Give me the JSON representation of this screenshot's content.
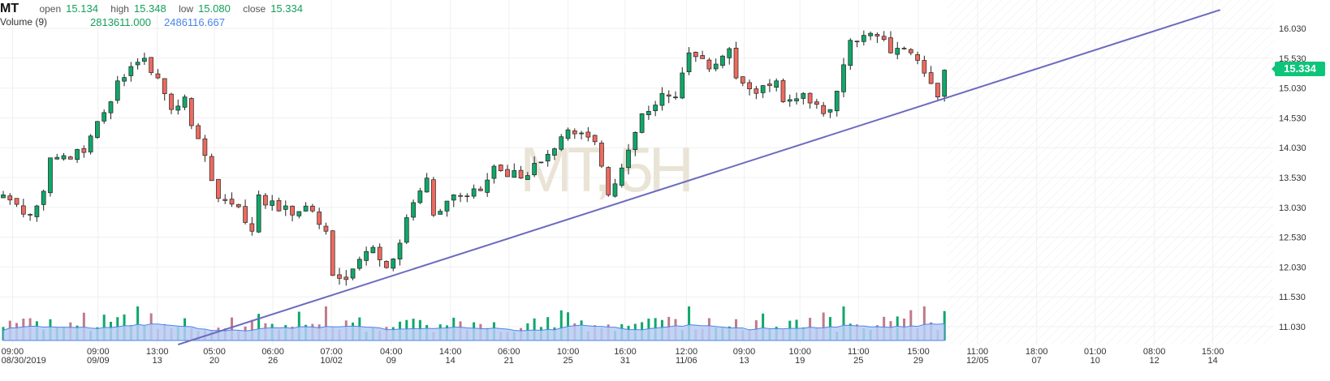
{
  "header": {
    "symbol": "MT",
    "open_label": "open",
    "open": "15.134",
    "high_label": "high",
    "high": "15.348",
    "low_label": "low",
    "low": "15.080",
    "close_label": "close",
    "close": "15.334",
    "volume_label": "Volume (9)",
    "volume_value": "2813611.000",
    "volume_ma_value": "2486116.667"
  },
  "last_price_tag": "15.334",
  "watermark": "MT, 5H",
  "colors": {
    "up": "#0fa86a",
    "down": "#ee6a5f",
    "trendline": "#6b6bbf",
    "volume_ma": "#4a86e8",
    "volume_fill": "#b7cdf4",
    "price_tag": "#0dc57a"
  },
  "chart_data": {
    "type": "candlestick",
    "title": "MT",
    "ylim": [
      10.6,
      16.45
    ],
    "y_ticks": [
      "16.030",
      "15.530",
      "15.030",
      "14.530",
      "14.030",
      "13.530",
      "13.030",
      "12.530",
      "12.030",
      "11.530",
      "11.030"
    ],
    "candle_count": 141,
    "future_until_index": 189,
    "close_waypoints": [
      [
        0,
        13.24
      ],
      [
        4,
        12.9
      ],
      [
        6,
        13.3
      ],
      [
        7,
        13.86
      ],
      [
        12,
        13.95
      ],
      [
        14,
        14.47
      ],
      [
        16,
        14.8
      ],
      [
        17,
        15.15
      ],
      [
        21,
        15.53
      ],
      [
        23,
        15.2
      ],
      [
        25,
        14.67
      ],
      [
        27,
        14.88
      ],
      [
        28,
        14.4
      ],
      [
        30,
        13.9
      ],
      [
        32,
        13.18
      ],
      [
        35,
        13.04
      ],
      [
        37,
        12.63
      ],
      [
        38,
        13.24
      ],
      [
        41,
        12.97
      ],
      [
        46,
        12.97
      ],
      [
        48,
        12.63
      ],
      [
        49,
        11.89
      ],
      [
        51,
        11.82
      ],
      [
        53,
        12.16
      ],
      [
        55,
        12.36
      ],
      [
        57,
        12.02
      ],
      [
        59,
        12.43
      ],
      [
        61,
        13.11
      ],
      [
        63,
        13.52
      ],
      [
        64,
        12.9
      ],
      [
        67,
        13.24
      ],
      [
        71,
        13.31
      ],
      [
        73,
        13.72
      ],
      [
        77,
        13.52
      ],
      [
        80,
        13.79
      ],
      [
        84,
        14.33
      ],
      [
        88,
        14.13
      ],
      [
        89,
        13.72
      ],
      [
        90,
        13.24
      ],
      [
        93,
        13.99
      ],
      [
        95,
        14.6
      ],
      [
        98,
        14.94
      ],
      [
        100,
        14.88
      ],
      [
        102,
        15.62
      ],
      [
        105,
        15.35
      ],
      [
        108,
        15.69
      ],
      [
        109,
        15.2
      ],
      [
        112,
        14.94
      ],
      [
        115,
        15.15
      ],
      [
        116,
        14.8
      ],
      [
        119,
        14.94
      ],
      [
        122,
        14.6
      ],
      [
        123,
        14.67
      ],
      [
        125,
        15.42
      ],
      [
        126,
        15.83
      ],
      [
        130,
        15.9
      ],
      [
        132,
        15.62
      ],
      [
        135,
        15.62
      ],
      [
        137,
        15.28
      ],
      [
        139,
        14.88
      ],
      [
        140,
        15.33
      ]
    ],
    "volume_peaks_index": [
      20,
      48,
      102,
      125,
      137
    ],
    "trendline": [
      [
        26,
        10.73
      ],
      [
        181,
        16.34
      ]
    ],
    "x_ticks": [
      {
        "i": 0.2,
        "time": "09:00",
        "date": "08/30/2019"
      },
      {
        "i": 12.9,
        "time": "09:00",
        "date": "09/09"
      },
      {
        "i": 21.7,
        "time": "13:00",
        "date": "13"
      },
      {
        "i": 30.2,
        "time": "05:00",
        "date": "20"
      },
      {
        "i": 38.9,
        "time": "06:00",
        "date": "26"
      },
      {
        "i": 47.6,
        "time": "07:00",
        "date": "10/02"
      },
      {
        "i": 56.5,
        "time": "04:00",
        "date": "09"
      },
      {
        "i": 65.3,
        "time": "14:00",
        "date": "14"
      },
      {
        "i": 74,
        "time": "06:00",
        "date": "21"
      },
      {
        "i": 82.8,
        "time": "10:00",
        "date": "25"
      },
      {
        "i": 91.3,
        "time": "16:00",
        "date": "31"
      },
      {
        "i": 100.4,
        "time": "12:00",
        "date": "11/06"
      },
      {
        "i": 109,
        "time": "09:00",
        "date": "13"
      },
      {
        "i": 117.3,
        "time": "10:00",
        "date": "19"
      },
      {
        "i": 126,
        "time": "11:00",
        "date": "25"
      },
      {
        "i": 134.9,
        "time": "15:00",
        "date": "29"
      },
      {
        "i": 143.7,
        "time": "11:00",
        "date": "12/05"
      },
      {
        "i": 152.5,
        "time": "18:00",
        "date": "07"
      },
      {
        "i": 161.2,
        "time": "01:00",
        "date": "10"
      },
      {
        "i": 170,
        "time": "08:00",
        "date": "12"
      },
      {
        "i": 178.7,
        "time": "15:00",
        "date": "14"
      }
    ]
  }
}
